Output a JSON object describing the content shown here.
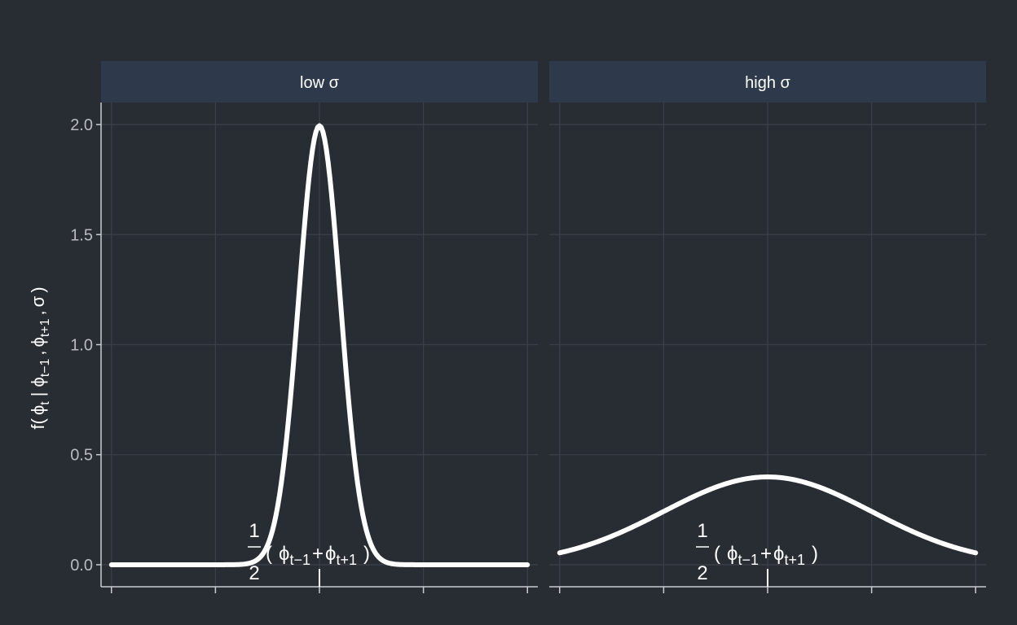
{
  "chart_data": {
    "type": "line",
    "ylabel_parts": {
      "f": "f(",
      "phi": "ϕ",
      "t": "t",
      "bar": "|",
      "tm1": "t−1",
      "comma": ",",
      "tp1": "t+1",
      "sigma": "σ",
      "close": ")"
    },
    "y_ticks": [
      "0.0",
      "0.5",
      "1.0",
      "1.5",
      "2.0"
    ],
    "y_tick_values": [
      0,
      0.5,
      1.0,
      1.5,
      2.0
    ],
    "ylim": [
      -0.1,
      2.1
    ],
    "xlim": [
      -2.1,
      2.1
    ],
    "x_tick_values": [
      -2,
      -1,
      0,
      1,
      2
    ],
    "grid": true,
    "annotation": {
      "num": "1",
      "den": "2",
      "open": "(",
      "phi": "ϕ",
      "tm1": "t−1",
      "plus": "+",
      "tp1": "t+1",
      "close": ")"
    },
    "panels": [
      {
        "strip": "low σ",
        "mean": 0,
        "sigma": 0.2,
        "x_range": [
          -2,
          2
        ],
        "peak": 2.0
      },
      {
        "strip": "high σ",
        "mean": 0,
        "sigma": 1.0,
        "x_range": [
          -2,
          2
        ],
        "peak": 0.4
      }
    ],
    "line_color": "#ffffff"
  },
  "colors": {
    "background": "#282c33",
    "strip": "#2e3a4b",
    "grid": "#3b4048",
    "axis": "#c8ccd2",
    "curve": "#ffffff"
  }
}
